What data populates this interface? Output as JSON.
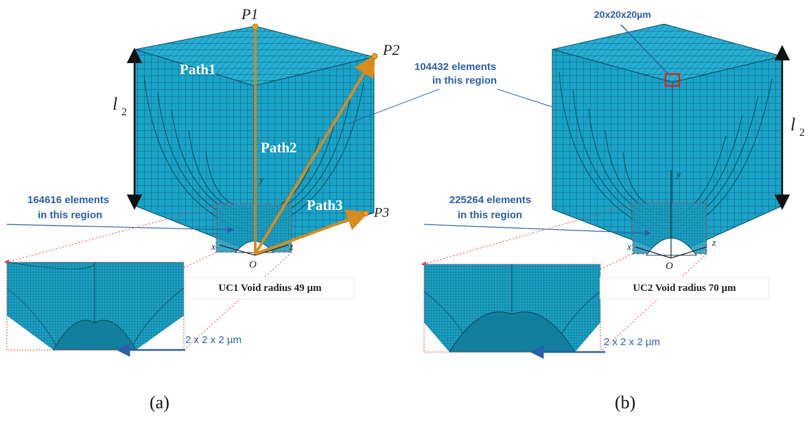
{
  "panel_a": {
    "caption": "(a)",
    "points": {
      "p1": "P1",
      "p2": "P2",
      "p3": "P3",
      "origin": "O"
    },
    "paths": {
      "path1": "Path1",
      "path2": "Path2",
      "path3": "Path3"
    },
    "axes": {
      "x": "x",
      "y": "y",
      "z": "z"
    },
    "half_length_label": {
      "numerator": "l",
      "denominator": "2"
    },
    "coarse_region": {
      "count_line": "104432 elements",
      "suffix_line": "in this region"
    },
    "fine_region": {
      "count_line": "164616 elements",
      "suffix_line": "in this region"
    },
    "void_note": "UC1 Void radius 49 µm",
    "element_size_note": "2 x 2 x 2 µm"
  },
  "panel_b": {
    "caption": "(b)",
    "points": {
      "origin": "O"
    },
    "axes": {
      "x": "x",
      "y": "y",
      "z": "z"
    },
    "half_length_label": {
      "numerator": "l",
      "denominator": "2"
    },
    "coarse_element_size": "20x20x20µm",
    "fine_region": {
      "count_line": "225264 elements",
      "suffix_line": "in this region"
    },
    "void_note": "UC2 Void radius 70 µm",
    "element_size_note": "2 x 2 x 2 µm"
  },
  "colors": {
    "mesh_fill": "#1aa3c8",
    "mesh_top": "#26afd4",
    "mesh_line": "#0b4a5e",
    "path_orange": "#d98a1c",
    "annotation_blue": "#2b5fa8",
    "red_dashed": "#e04040"
  }
}
